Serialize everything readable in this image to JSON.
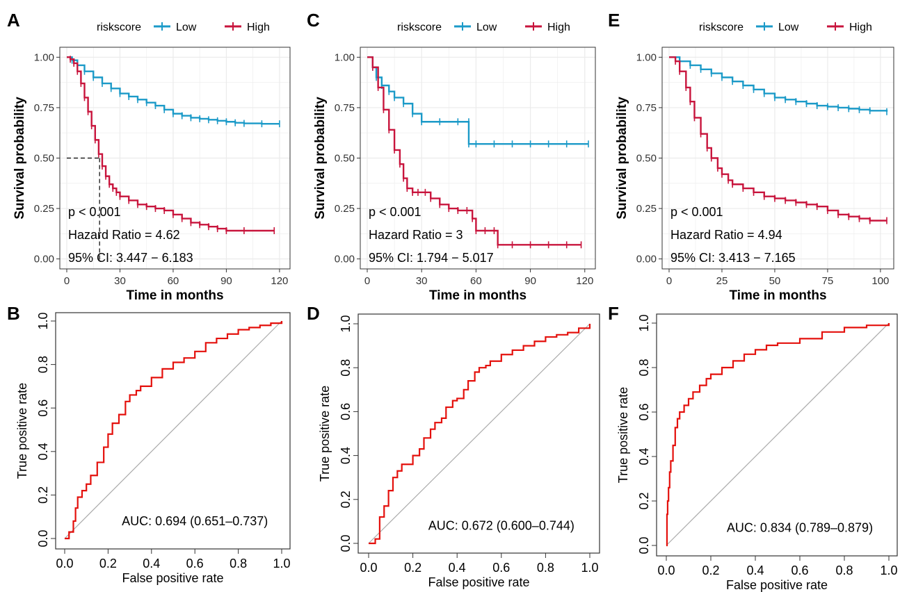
{
  "colors": {
    "low": "#1B9AC8",
    "high": "#C8143C",
    "roc": "#E4100C",
    "grid": "#EBEBEB",
    "diag": "#AAAAAA"
  },
  "km_legend": {
    "title": "riskscore",
    "low": "Low",
    "high": "High"
  },
  "chart_data": [
    {
      "panel": "A",
      "type": "line",
      "kind": "kaplan-meier",
      "xlabel": "Time in months",
      "ylabel": "Survival probability",
      "xlim": [
        0,
        122
      ],
      "ylim": [
        0,
        1
      ],
      "xticks": [
        "0",
        "30",
        "60",
        "90",
        "120"
      ],
      "yticks": [
        "0.00",
        "0.25",
        "0.50",
        "0.75",
        "1.00"
      ],
      "grid": true,
      "legend": "top",
      "annotations": [
        "p < 0.001",
        "Hazard Ratio = 4.62",
        "95% CI: 3.447 − 6.183"
      ],
      "median_line": {
        "x": 18.5,
        "y": 0.5
      },
      "series": [
        {
          "name": "Low",
          "color": "#1B9AC8",
          "x": [
            0,
            3,
            6,
            10,
            15,
            20,
            25,
            30,
            35,
            40,
            45,
            50,
            55,
            60,
            65,
            70,
            75,
            80,
            85,
            90,
            95,
            100,
            110,
            120
          ],
          "y": [
            1.0,
            0.985,
            0.96,
            0.93,
            0.9,
            0.87,
            0.845,
            0.82,
            0.805,
            0.79,
            0.775,
            0.76,
            0.74,
            0.72,
            0.71,
            0.7,
            0.695,
            0.69,
            0.685,
            0.68,
            0.675,
            0.672,
            0.67,
            0.67
          ]
        },
        {
          "name": "High",
          "color": "#C8143C",
          "x": [
            0,
            2,
            4,
            6,
            8,
            10,
            12,
            14,
            16,
            18,
            20,
            22,
            24,
            26,
            28,
            30,
            35,
            40,
            45,
            50,
            55,
            60,
            65,
            70,
            75,
            80,
            85,
            90,
            100,
            117
          ],
          "y": [
            1.0,
            0.99,
            0.97,
            0.93,
            0.87,
            0.8,
            0.73,
            0.66,
            0.59,
            0.52,
            0.46,
            0.41,
            0.37,
            0.35,
            0.33,
            0.31,
            0.29,
            0.27,
            0.26,
            0.25,
            0.24,
            0.22,
            0.2,
            0.18,
            0.17,
            0.16,
            0.15,
            0.14,
            0.14,
            0.14
          ]
        }
      ]
    },
    {
      "panel": "C",
      "type": "line",
      "kind": "kaplan-meier",
      "xlabel": "Time in months",
      "ylabel": "Survival probability",
      "xlim": [
        0,
        122
      ],
      "ylim": [
        0,
        1
      ],
      "xticks": [
        "0",
        "30",
        "60",
        "90",
        "120"
      ],
      "yticks": [
        "0.00",
        "0.25",
        "0.50",
        "0.75",
        "1.00"
      ],
      "grid": true,
      "legend": "top",
      "annotations": [
        "p < 0.001",
        "Hazard Ratio = 3",
        "95% CI: 1.794 − 5.017"
      ],
      "series": [
        {
          "name": "Low",
          "color": "#1B9AC8",
          "x": [
            0,
            3,
            5,
            8,
            12,
            15,
            20,
            25,
            30,
            40,
            50,
            56,
            56,
            60,
            70,
            80,
            90,
            100,
            110,
            122
          ],
          "y": [
            1.0,
            0.95,
            0.9,
            0.86,
            0.83,
            0.8,
            0.77,
            0.72,
            0.68,
            0.68,
            0.68,
            0.68,
            0.57,
            0.57,
            0.57,
            0.57,
            0.57,
            0.57,
            0.57,
            0.57
          ]
        },
        {
          "name": "High",
          "color": "#C8143C",
          "x": [
            0,
            3,
            6,
            9,
            12,
            15,
            18,
            20,
            22,
            25,
            28,
            32,
            35,
            40,
            45,
            50,
            55,
            58,
            60,
            65,
            70,
            72,
            80,
            90,
            100,
            110,
            118
          ],
          "y": [
            1.0,
            0.95,
            0.85,
            0.74,
            0.64,
            0.54,
            0.47,
            0.4,
            0.35,
            0.33,
            0.33,
            0.33,
            0.3,
            0.27,
            0.25,
            0.24,
            0.24,
            0.2,
            0.14,
            0.14,
            0.14,
            0.07,
            0.07,
            0.07,
            0.07,
            0.07,
            0.07
          ]
        }
      ]
    },
    {
      "panel": "E",
      "type": "line",
      "kind": "kaplan-meier",
      "xlabel": "Time in months",
      "ylabel": "Survival probability",
      "xlim": [
        0,
        103
      ],
      "ylim": [
        0,
        1
      ],
      "xticks": [
        "0",
        "25",
        "50",
        "75",
        "100"
      ],
      "yticks": [
        "0.00",
        "0.25",
        "0.50",
        "0.75",
        "1.00"
      ],
      "grid": true,
      "legend": "top",
      "annotations": [
        "p < 0.001",
        "Hazard Ratio = 4.94",
        "95% CI: 3.413 − 7.165"
      ],
      "series": [
        {
          "name": "Low",
          "color": "#1B9AC8",
          "x": [
            0,
            5,
            10,
            15,
            20,
            25,
            30,
            35,
            40,
            45,
            50,
            55,
            60,
            65,
            70,
            75,
            80,
            85,
            90,
            95,
            103
          ],
          "y": [
            1.0,
            0.98,
            0.96,
            0.94,
            0.92,
            0.9,
            0.88,
            0.86,
            0.84,
            0.82,
            0.8,
            0.79,
            0.78,
            0.77,
            0.76,
            0.755,
            0.75,
            0.745,
            0.74,
            0.735,
            0.73
          ]
        },
        {
          "name": "High",
          "color": "#C8143C",
          "x": [
            0,
            3,
            5,
            8,
            10,
            12,
            15,
            18,
            20,
            23,
            25,
            28,
            30,
            35,
            40,
            45,
            50,
            55,
            60,
            65,
            70,
            75,
            80,
            85,
            90,
            95,
            103
          ],
          "y": [
            1.0,
            0.98,
            0.93,
            0.85,
            0.78,
            0.7,
            0.62,
            0.55,
            0.5,
            0.45,
            0.42,
            0.39,
            0.37,
            0.35,
            0.33,
            0.31,
            0.3,
            0.29,
            0.28,
            0.27,
            0.26,
            0.24,
            0.22,
            0.21,
            0.2,
            0.19,
            0.19
          ]
        }
      ]
    },
    {
      "panel": "B",
      "type": "line",
      "kind": "roc",
      "xlabel": "False positive rate",
      "ylabel": "True positive rate",
      "xlim": [
        0,
        1
      ],
      "ylim": [
        0,
        1
      ],
      "xticks": [
        "0.0",
        "0.2",
        "0.4",
        "0.6",
        "0.8",
        "1.0"
      ],
      "yticks": [
        "0.0",
        "0.2",
        "0.4",
        "0.6",
        "0.8",
        "1.0"
      ],
      "auc_label": "AUC: 0.694 (0.651–0.737)",
      "series": [
        {
          "color": "#E4100C",
          "x": [
            0,
            0.02,
            0.04,
            0.05,
            0.06,
            0.08,
            0.1,
            0.12,
            0.15,
            0.18,
            0.2,
            0.22,
            0.25,
            0.28,
            0.3,
            0.33,
            0.35,
            0.4,
            0.45,
            0.5,
            0.55,
            0.6,
            0.65,
            0.7,
            0.75,
            0.8,
            0.85,
            0.9,
            0.95,
            1.0
          ],
          "y": [
            0,
            0.03,
            0.08,
            0.14,
            0.19,
            0.22,
            0.25,
            0.29,
            0.35,
            0.42,
            0.48,
            0.53,
            0.57,
            0.63,
            0.66,
            0.68,
            0.7,
            0.74,
            0.78,
            0.81,
            0.83,
            0.86,
            0.9,
            0.92,
            0.94,
            0.96,
            0.97,
            0.98,
            0.99,
            1.0
          ]
        }
      ]
    },
    {
      "panel": "D",
      "type": "line",
      "kind": "roc",
      "xlabel": "False positive rate",
      "ylabel": "True positive rate",
      "xlim": [
        0,
        1
      ],
      "ylim": [
        0,
        1
      ],
      "xticks": [
        "0.0",
        "0.2",
        "0.4",
        "0.6",
        "0.8",
        "1.0"
      ],
      "yticks": [
        "0.0",
        "0.2",
        "0.4",
        "0.6",
        "0.8",
        "1.0"
      ],
      "auc_label": "AUC: 0.672 (0.600–0.744)",
      "series": [
        {
          "color": "#E4100C",
          "x": [
            0,
            0.03,
            0.05,
            0.07,
            0.09,
            0.11,
            0.13,
            0.15,
            0.2,
            0.23,
            0.25,
            0.28,
            0.3,
            0.33,
            0.35,
            0.38,
            0.4,
            0.43,
            0.45,
            0.48,
            0.5,
            0.53,
            0.55,
            0.6,
            0.65,
            0.7,
            0.75,
            0.8,
            0.85,
            0.9,
            0.95,
            1.0
          ],
          "y": [
            0,
            0.02,
            0.12,
            0.17,
            0.24,
            0.3,
            0.33,
            0.36,
            0.4,
            0.43,
            0.48,
            0.52,
            0.55,
            0.57,
            0.62,
            0.65,
            0.66,
            0.7,
            0.74,
            0.78,
            0.8,
            0.81,
            0.83,
            0.86,
            0.88,
            0.9,
            0.92,
            0.94,
            0.95,
            0.96,
            0.98,
            1.0
          ]
        }
      ]
    },
    {
      "panel": "F",
      "type": "line",
      "kind": "roc",
      "xlabel": "False positive rate",
      "ylabel": "True positive rate",
      "xlim": [
        0,
        1
      ],
      "ylim": [
        0,
        1
      ],
      "xticks": [
        "0.0",
        "0.2",
        "0.4",
        "0.6",
        "0.8",
        "1.0"
      ],
      "yticks": [
        "0.0",
        "0.2",
        "0.4",
        "0.6",
        "0.8",
        "1.0"
      ],
      "auc_label": "AUC: 0.834 (0.789–0.879)",
      "series": [
        {
          "color": "#E4100C",
          "x": [
            0,
            0.003,
            0.006,
            0.01,
            0.015,
            0.02,
            0.03,
            0.04,
            0.05,
            0.06,
            0.08,
            0.1,
            0.12,
            0.15,
            0.18,
            0.2,
            0.25,
            0.3,
            0.35,
            0.4,
            0.45,
            0.5,
            0.6,
            0.7,
            0.8,
            0.9,
            1.0
          ],
          "y": [
            0,
            0.14,
            0.2,
            0.26,
            0.33,
            0.38,
            0.45,
            0.53,
            0.57,
            0.6,
            0.63,
            0.66,
            0.69,
            0.72,
            0.75,
            0.77,
            0.8,
            0.83,
            0.86,
            0.88,
            0.9,
            0.91,
            0.93,
            0.96,
            0.98,
            0.99,
            1.0
          ]
        }
      ]
    }
  ]
}
